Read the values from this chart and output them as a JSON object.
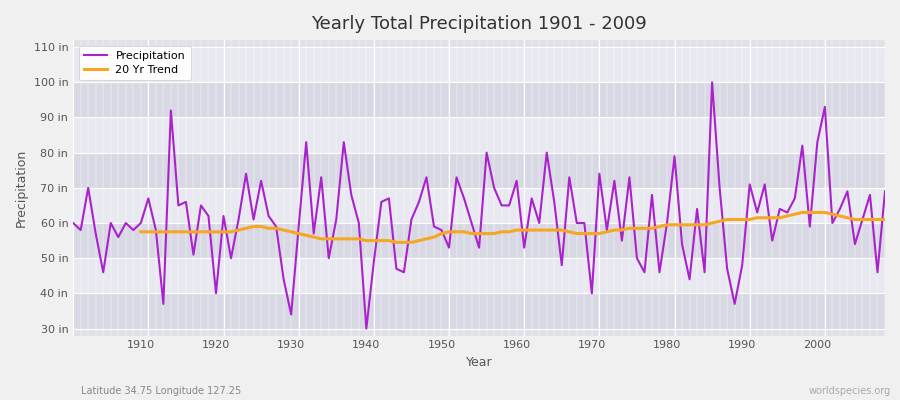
{
  "title": "Yearly Total Precipitation 1901 - 2009",
  "xlabel": "Year",
  "ylabel": "Precipitation",
  "subtitle_left": "Latitude 34.75 Longitude 127.25",
  "subtitle_right": "worldspecies.org",
  "fig_bg_color": "#f0f0f0",
  "plot_bg_color": "#e0e0e8",
  "band_color_light": "#e8e8f0",
  "band_color_dark": "#d8d8e4",
  "grid_color": "#ffffff",
  "precip_color": "#aa22cc",
  "trend_color": "#f5a623",
  "ylim": [
    28,
    112
  ],
  "yticks": [
    30,
    40,
    50,
    60,
    70,
    80,
    90,
    100,
    110
  ],
  "ytick_labels": [
    "30 in",
    "40 in",
    "50 in",
    "60 in",
    "70 in",
    "80 in",
    "90 in",
    "100 in",
    "110 in"
  ],
  "years": [
    1901,
    1902,
    1903,
    1904,
    1905,
    1906,
    1907,
    1908,
    1909,
    1910,
    1911,
    1912,
    1913,
    1914,
    1915,
    1916,
    1917,
    1918,
    1919,
    1920,
    1921,
    1922,
    1923,
    1924,
    1925,
    1926,
    1927,
    1928,
    1929,
    1930,
    1931,
    1932,
    1933,
    1934,
    1935,
    1936,
    1937,
    1938,
    1939,
    1940,
    1941,
    1942,
    1943,
    1944,
    1945,
    1946,
    1947,
    1948,
    1949,
    1950,
    1951,
    1952,
    1953,
    1954,
    1955,
    1956,
    1957,
    1958,
    1959,
    1960,
    1961,
    1962,
    1963,
    1964,
    1965,
    1966,
    1967,
    1968,
    1969,
    1970,
    1971,
    1972,
    1973,
    1974,
    1975,
    1976,
    1977,
    1978,
    1979,
    1980,
    1981,
    1982,
    1983,
    1984,
    1985,
    1986,
    1987,
    1988,
    1989,
    1990,
    1991,
    1992,
    1993,
    1994,
    1995,
    1996,
    1997,
    1998,
    1999,
    2000,
    2001,
    2002,
    2003,
    2004,
    2005,
    2006,
    2007,
    2008,
    2009
  ],
  "precip": [
    60,
    58,
    70,
    57,
    46,
    60,
    56,
    60,
    58,
    60,
    67,
    58,
    37,
    92,
    65,
    66,
    51,
    65,
    62,
    40,
    62,
    50,
    61,
    74,
    61,
    72,
    62,
    59,
    44,
    34,
    59,
    83,
    57,
    73,
    50,
    61,
    83,
    68,
    60,
    30,
    49,
    66,
    67,
    47,
    46,
    61,
    66,
    73,
    59,
    58,
    53,
    73,
    67,
    60,
    53,
    80,
    70,
    65,
    65,
    72,
    53,
    67,
    60,
    80,
    66,
    48,
    73,
    60,
    60,
    40,
    74,
    58,
    72,
    55,
    73,
    50,
    46,
    68,
    46,
    60,
    79,
    54,
    44,
    64,
    46,
    100,
    70,
    47,
    37,
    48,
    71,
    63,
    71,
    55,
    64,
    63,
    67,
    82,
    59,
    83,
    93,
    60,
    64,
    69,
    54,
    61,
    68,
    46,
    69
  ],
  "trend": [
    null,
    null,
    null,
    null,
    null,
    null,
    null,
    null,
    null,
    57.5,
    57.5,
    57.5,
    57.5,
    57.5,
    57.5,
    57.5,
    57.5,
    57.5,
    57.5,
    57.5,
    57.5,
    57.5,
    58,
    58.5,
    59,
    59,
    58.5,
    58.5,
    58,
    57.5,
    57,
    56.5,
    56,
    55.5,
    55.5,
    55.5,
    55.5,
    55.5,
    55.5,
    55,
    55,
    55,
    55,
    54.5,
    54.5,
    54.5,
    55,
    55.5,
    56,
    57,
    57.5,
    57.5,
    57.5,
    57,
    57,
    57,
    57,
    57.5,
    57.5,
    58,
    58,
    58,
    58,
    58,
    58,
    58,
    57.5,
    57,
    57,
    57,
    57,
    57.5,
    58,
    58,
    58.5,
    58.5,
    58.5,
    58.5,
    59,
    59.5,
    59.5,
    59.5,
    59.5,
    59.5,
    59.5,
    60,
    60.5,
    61,
    61,
    61,
    61,
    61.5,
    61.5,
    61.5,
    61.5,
    62,
    62.5,
    63,
    63,
    63,
    63,
    62.5,
    62,
    61.5,
    61,
    61,
    61,
    61,
    61
  ]
}
